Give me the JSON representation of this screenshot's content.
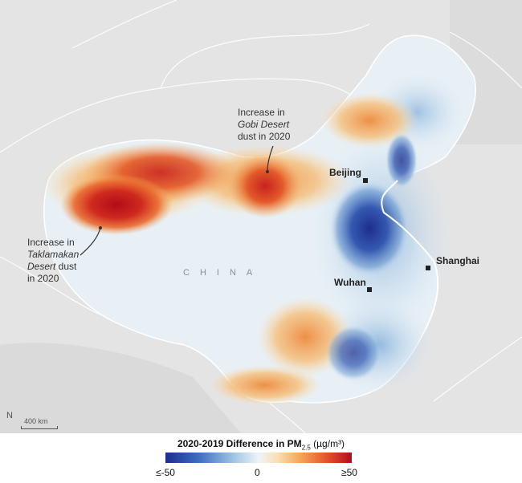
{
  "map": {
    "country_label": "CHINA",
    "cities": [
      {
        "name": "Beijing"
      },
      {
        "name": "Shanghai"
      },
      {
        "name": "Wuhan"
      }
    ],
    "annotations": {
      "gobi": {
        "line1": "Increase in",
        "italic": "Gobi Desert",
        "line3": "dust in 2020"
      },
      "taklamakan": {
        "line1": "Increase in",
        "italic": "Taklamakan",
        "line3": "Desert",
        "line3b": " dust",
        "line4": "in 2020"
      }
    },
    "scale_label": "400 km",
    "north_symbol": "N"
  },
  "legend": {
    "title": "2020-2019 Difference in PM",
    "subscript": "2.5",
    "unit": " (µg/m³)",
    "ticks": {
      "min": "≤-50",
      "mid": "0",
      "max": "≥50"
    },
    "colors": {
      "low": "#1d2d8c",
      "mid": "#eef4f8",
      "high": "#b40c1c"
    }
  }
}
